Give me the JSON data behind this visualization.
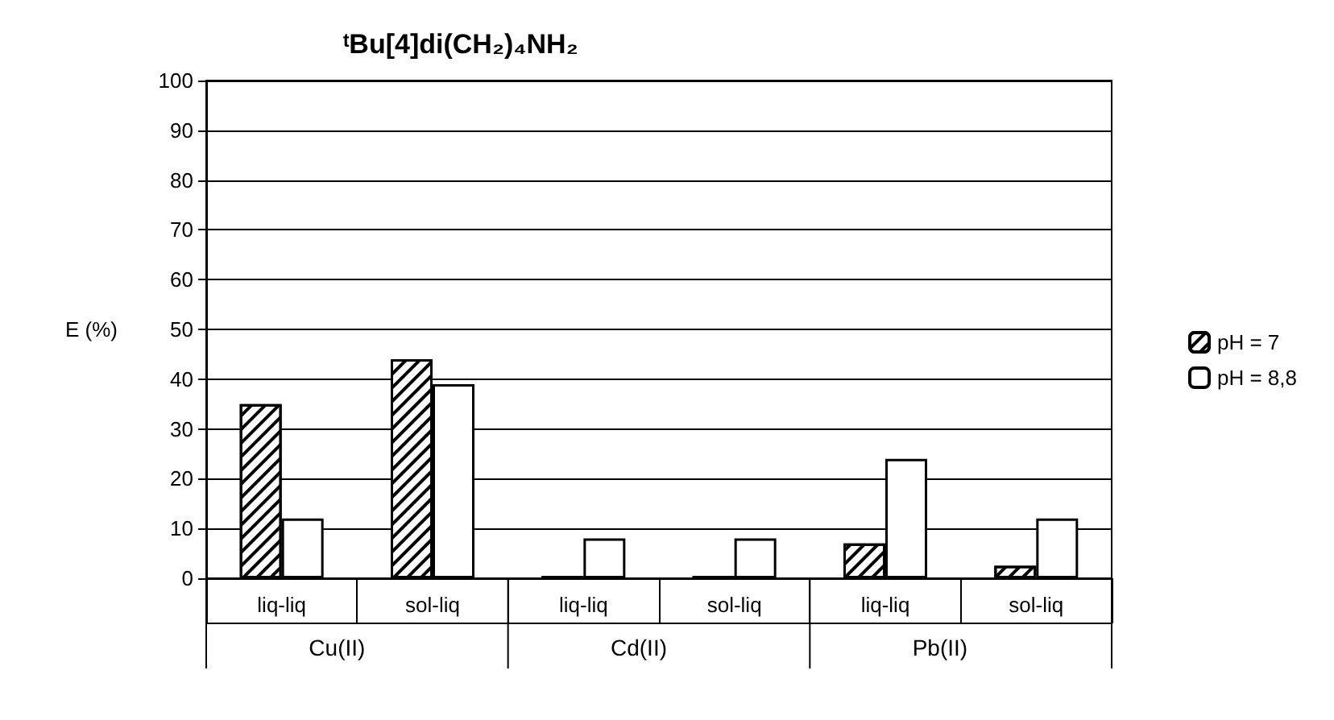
{
  "chart_data": {
    "type": "bar",
    "title": "ᵗBu[4]di(CH₂)₄NH₂",
    "ylabel": "E (%)",
    "categories": [
      "liq-liq",
      "sol-liq",
      "liq-liq",
      "sol-liq",
      "liq-liq",
      "sol-liq"
    ],
    "series": [
      {
        "name": "pH = 7",
        "color": "#ffffff",
        "values": [
          35,
          44,
          0.5,
          0.5,
          7,
          2.5
        ]
      },
      {
        "name": "pH = 8,8",
        "color": "#ffffff",
        "values": [
          12,
          39,
          8,
          8,
          24,
          12
        ]
      }
    ],
    "annotations": [
      "Cu(II)",
      "Cd(II)",
      "Pb(II)"
    ],
    "ylim": [
      0,
      100
    ],
    "yticks": [
      0,
      10,
      20,
      30,
      40,
      50,
      60,
      70,
      80,
      90,
      100
    ],
    "grid": "y",
    "legend": "right"
  }
}
